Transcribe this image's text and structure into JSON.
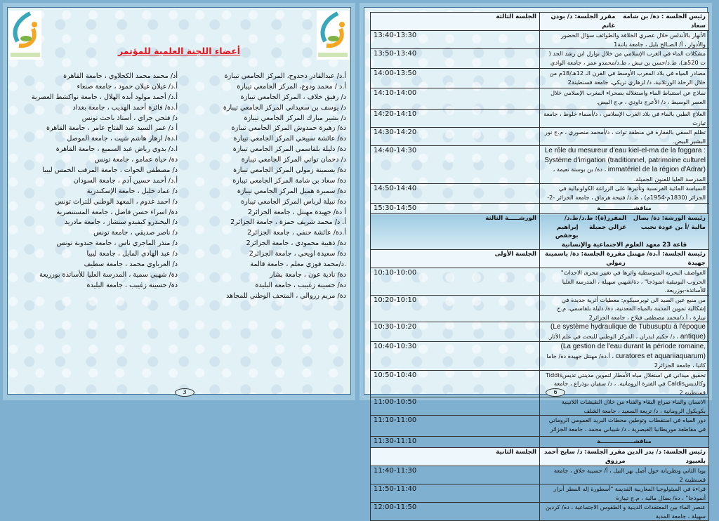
{
  "left_page": {
    "title": "أعضاء اللجنة العلمية للمؤتمر",
    "page_number": "3",
    "committee_column_1": [
      "أ.د/ عبدالقادر دحدوح، المركز الجامعي تيبازة",
      "أ.د / محمد ودوع، المركز الجامعي تيبازة",
      "د/ رفيق خلاف ، المركز الجامعي تيبازة",
      "د/ يوسف بن سعيداني المركز الجامعي تيبازة",
      "د/ بشير مبارك المركز الجامعي تيبازة",
      "دة/ زهيرة حمدوش المركز الجامعي تيبازة",
      "دة/ عائشة سبيحي المركز الجامعي تيبازة",
      "دة/ دليلة بلقاسمي المركز الجامعي تيبازة",
      "د/ دحمان تواتي المركز الجامعي تيبازة",
      "دة/ يسمينة زمولي المركز الجامعي تيبازة",
      "دة/ سعاد بن شامة المركز الجامعي تيبازة",
      "دة/ سميرة هميل المركز الجامعي تيبازة",
      "دة/ نبيلة لرباس المركز الجامعي تيبازة",
      "أ دة/ جهيدة مهنتل ، جامعة الجزائر2",
      "أ. د/ محمد شريف حمزة ، جامعة الجزائر2",
      "أ.دة/ عائشة حنفي ، جامعة الجزائر2",
      "دة/ ذهبية محمودي ، جامعة الجزائر2",
      "دة/ سعيدة اويحي ، جامعة الجزائر2",
      ".د/محمد فوزي معلم ، جامعة قالمة",
      "دة/ نادية عون ، جامعة بشار",
      "دة/ حسينة زغيبب ، جامعة البليدة",
      "دة/ مريم زروالي ، المتحف الوطني للمجاهد"
    ],
    "committee_column_2": [
      "أد/ محمد محمد الكحلاوي ، جامعة القاهرة",
      "أ.د/ غيلان غيلان حمود ، جامعة صنعاء",
      "أ.د/ أحمد مولود أيده الهلال ، جامعة نواكشط العصرية",
      "أ.دة/ فائزة أحمد الهديب ، جامعة بغداد",
      "د/ فتحي جراي ، أستاذ باحث تونس",
      "أ د/ عمر السيد عبد الفتاح عامر ، جامعة القاهرة",
      "ا.دة/ ازهار هاشم شيت ، جامعة الموصل",
      "ا.د/ بدوي رياض عبد السميع ، جامعة القاهرة",
      "دة/ حياة عمامو ، جامعة تونس",
      "د/ مصطفى الحوات ، جامعة المرقب الخمس ليبيا",
      "أ.د/ أحمد حسين آدم ، جامعة السودان",
      "د/ عماد خليل ، جامعة الإسكندرية",
      "د/ احمد غدوم ، المعهد الوطني للتراث تونس",
      "دة/ اسراء حسن فاضل ، جامعة المستنصرية",
      "د/ اليخندرو كيفيدو سنشاز ، جامعة مادريد",
      "د/ ناصر صديقي ، جامعة تونس",
      "د/ منذر الماجري ناس ، جامعة جندوبة تونس",
      "د/ عبد الهادي المايل ، جامعة ليبيا",
      "د/ العرباوي محمد ، جامعة سطيف",
      "دة/ شهبي سمية ، المدرسة العليا للأساتذة بوزريعة",
      "دة/ حسينة زغيبب ، جامعة البليدة"
    ]
  },
  "right_page": {
    "page_number": "6",
    "rows": [
      {
        "kind": "session",
        "label": "الجلسة الثالثة",
        "chair": "رئيس الجلسة : دة/ بن شامة سعاد",
        "rapporteur": "مقرر الجلسة: د/ بودن غانم"
      },
      {
        "kind": "talk",
        "time": "13:40-13:30",
        "text": "الأنهار بالأندلس خلال عصري الخلافة والطوائف سؤال الحضور والأدوار ، أ/ الصـالح بليل ، جامعة باتنة1"
      },
      {
        "kind": "talk",
        "time": "13:50-13:40",
        "text": "مشكلات الماء في الغرب الإسلامي من خلال نوازل ابن رشد الجد ( ت 520هـ)، ط.د/حسن بن تيش ، ط.د/محمدو عمر ، جامعة الوادي"
      },
      {
        "kind": "talk",
        "time": "14:00-13:50",
        "text": "مصادر المياه في بلاد المغرب الأوسط في القرن الـ 12هـ/18م من خلال الرحلة الورتلانية، د/ لزهاري تريكي، جامعة قسنطينة2"
      },
      {
        "kind": "talk",
        "time": "14:10-14:00",
        "text": "نماذج عن استنباط الماء واستغلاله بصحراء المغرب الإسلامي خلال العصر الوسيط ، د/ الأعرج داودي ، م.ج البيض."
      },
      {
        "kind": "talk",
        "time": "14:20-14:10",
        "text": "العلاج الطبي بالماء في بلاد الغرب الإسلامي ، د/أسماء خلوط ، جامعة تيارت"
      },
      {
        "kind": "talk",
        "time": "14:30-14:20",
        "text": "تظلم السقي بالفقارة في منطقة توات ، د/أمحمد منصوري ، م.ج نور البشير البيض."
      },
      {
        "kind": "talk",
        "time": "14:40-14:30",
        "fr": "Le rôle du mesureur d'eau kiel-el-ma de la foggara : Système d'irrigation (traditionnel, patrimoine culturel immatériel de la région d'Adrar)",
        "text": "، دة/ بن بوستة نعيمة ، المدرسة العليا للفنون الجميلة."
      },
      {
        "kind": "talk",
        "time": "14:50-14:40",
        "text": "السياسة المائية الفرنسية وتأثيرها على الزراعة الكولونيالية في الجزائر (1830م-1954م) ، ط.د/ فتيحة هرماق ، جامعة الجزائر -2-"
      },
      {
        "kind": "discussion",
        "time": "15:30-14:50",
        "text": "مناقشـــــــــــــــــة"
      },
      {
        "kind": "workshop",
        "label": "الورشـــــة الثالثة",
        "chair": "رئيسة الورشة: دة/ بصال مالية /أ بن عودة نجيب",
        "rapporteur": "المقرر(ة): ط.د/غزالي جميلة",
        "rapporteur_2": "ط.د/ إبراهيم بوحفص",
        "room": "قاعة 23 معهد العلوم الاجتماعية والإنسانية"
      },
      {
        "kind": "session",
        "label": "الجلسة الأولى",
        "chair": "رئيسة الجلسة: أ.دة/ مهنتل جهيدة",
        "rapporteur": "مقررة الجلسة: دة/ ياسمينة زمولي"
      },
      {
        "kind": "talk",
        "time": "10:10-10:00",
        "text": "العواصف البحرية المتوسطية واثرها في تغيير مجرى الاحداث\" الحروب البونيقية انموذجا\" ، دة/شهبي سهيلة ، المدرسة العليا للأساتذة-بوزريعة."
      },
      {
        "kind": "talk",
        "time": "10:20-10:10",
        "text": "من منبع عين الصيد الى ثوبرسيكوم: معطيات أثرية جديدة في إشكالية تموين المدينة بالمياه المعدنية، دة/ دليلة بلقاسمي، م.ج تيبازة ، أ.د/محمد مصطفى فيلاح ، جامعة الجزائر2"
      },
      {
        "kind": "talk",
        "time": "10:30-10:20",
        "fr": "(Le système hydraulique de Tubusuptu à l'époque antique)",
        "text": "، د/ حكيم ايدران ، المركز الوطني للبحث في علم الآثار."
      },
      {
        "kind": "talk",
        "time": "10:40-10:30",
        "fr": "(La gestion de l'eau durant la période romaine, curatores et aquariiaquarum)",
        "text": "، أ.دة/ مهنتل جهيدة دة/ جاما كاتيا ، جامعة الجزائر2"
      },
      {
        "kind": "talk",
        "time": "10:50-10:40",
        "text": "تحقيق ميداني في استغلال مياه الأمطار لتموين مدينتي تديسTiddis وكالديسCaldis في الفترة الرومانية. ، د/ سفيان بوذراع ، جامعة قسنطينة 2"
      },
      {
        "kind": "talk",
        "time": "11:00-10:50",
        "text": "الانسان والماء صراع البقاء والفناء من خلال النقيشات اللاتينية بكويكول الرومانية ، د/ تريعة السعيد ، جامعة الشلف"
      },
      {
        "kind": "talk",
        "time": "11:10-11:00",
        "text": "دور المياه في استقطاب وتوطين محطات البريد العمومي الروماني في مقاطعة موريطانيا القيصرية ، د/ شيباني محمد ، جامعة الجزائر"
      },
      {
        "kind": "discussion",
        "time": "11:30-11:10",
        "text": "مناقشـــــــــــــــــة"
      },
      {
        "kind": "session",
        "label": "الجلسة الثانية",
        "chair": "رئيس الجلسة: د/ بدر الدين بلعبيود",
        "rapporteur": "مقرر الجلسة: د/ سايح أحمد مرزوق"
      },
      {
        "kind": "talk",
        "time": "11:40-11:30",
        "text": "يوبا الثاني ونظرياته حول أصل نهر النيل ، أ/ حسيبة حلاق ، جامعة قسنطينة 2"
      },
      {
        "kind": "talk",
        "time": "11:50-11:40",
        "text": "قراءة في الميثولوجيا المغاربية القديمة \"أسطورة إله المطر أنزار أنموذجا\" ، دة/ بصال مالية ، م.ج تيبازة"
      },
      {
        "kind": "talk",
        "time": "12:00-11:50",
        "text": "عنصر الماء بين المعتقدات الدينية و الطقوس الاجتماعية ، دة/ كردين سهيلة ، جامعة المدية"
      }
    ]
  },
  "colors": {
    "title": "#e4161d",
    "frame_border": "#3e6f97",
    "page_bg": "#e2f1f6"
  }
}
